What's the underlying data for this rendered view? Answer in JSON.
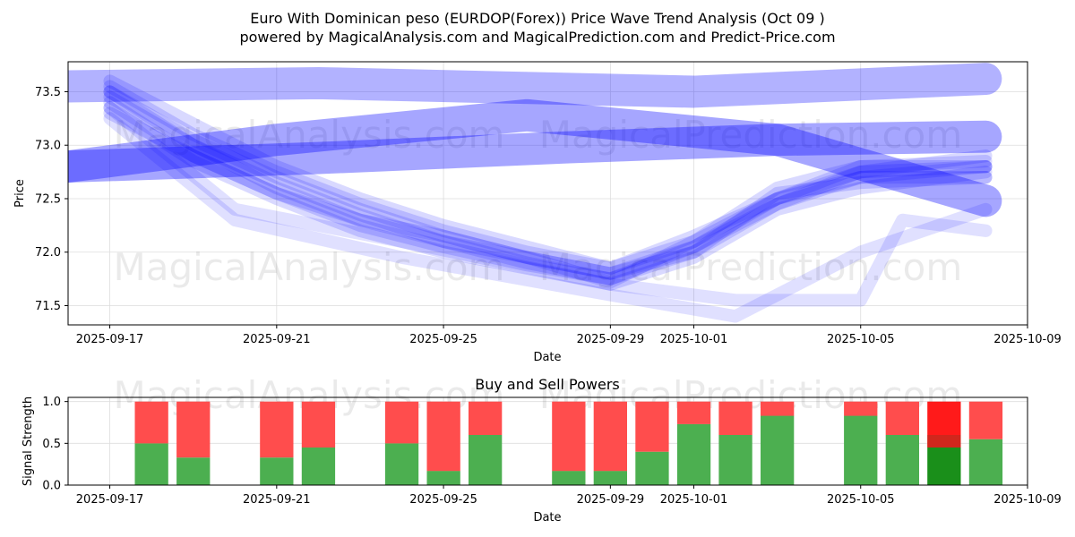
{
  "header": {
    "title": "Euro With Dominican peso (EURDOP(Forex)) Price Wave Trend Analysis (Oct 09 )",
    "subtitle": "powered by MagicalAnalysis.com and MagicalPrediction.com and Predict-Price.com"
  },
  "watermarks": [
    "MagicalAnalysis.com",
    "MagicalPrediction.com"
  ],
  "colors": {
    "wave": "#0000ff",
    "buy": "#4caf50",
    "sell": "#ff4d4d",
    "buy_highlight": "#1a8f1a",
    "sell_highlight": "#ff1a1a"
  },
  "chart_data": [
    {
      "type": "area",
      "name": "price-wave-chart",
      "xlabel": "Date",
      "ylabel": "Price",
      "x_ticks": [
        "2025-09-17",
        "2025-09-21",
        "2025-09-25",
        "2025-09-29",
        "2025-10-01",
        "2025-10-05",
        "2025-10-09"
      ],
      "y_ticks": [
        71.5,
        72.0,
        72.5,
        73.0,
        73.5
      ],
      "xlim": [
        "2025-09-16",
        "2025-10-09"
      ],
      "ylim": [
        71.32,
        73.78
      ],
      "grid": true,
      "series": [
        {
          "x": [
            "2025-09-16",
            "2025-09-22",
            "2025-10-01",
            "2025-10-08"
          ],
          "y": [
            73.55,
            73.58,
            73.5,
            73.62
          ],
          "w": 0.3,
          "alpha": 0.3
        },
        {
          "x": [
            "2025-09-16",
            "2025-09-21",
            "2025-09-27",
            "2025-10-03",
            "2025-10-08"
          ],
          "y": [
            72.8,
            73.05,
            73.28,
            73.05,
            72.48
          ],
          "w": 0.3,
          "alpha": 0.35
        },
        {
          "x": [
            "2025-09-16",
            "2025-09-22",
            "2025-09-28",
            "2025-10-03",
            "2025-10-08"
          ],
          "y": [
            72.8,
            72.88,
            72.98,
            73.05,
            73.08
          ],
          "w": 0.3,
          "alpha": 0.35
        },
        {
          "x": [
            "2025-09-17",
            "2025-09-19",
            "2025-09-21",
            "2025-09-23",
            "2025-09-25",
            "2025-09-27",
            "2025-09-29",
            "2025-10-01",
            "2025-10-03",
            "2025-10-05",
            "2025-10-08"
          ],
          "y": [
            73.45,
            73.0,
            72.6,
            72.3,
            72.1,
            71.95,
            71.72,
            72.1,
            72.5,
            72.7,
            72.8
          ],
          "w": 0.12,
          "alpha": 0.15
        },
        {
          "x": [
            "2025-09-17",
            "2025-09-19",
            "2025-09-21",
            "2025-09-23",
            "2025-09-25",
            "2025-09-27",
            "2025-09-29",
            "2025-10-01",
            "2025-10-03",
            "2025-10-05",
            "2025-10-08"
          ],
          "y": [
            73.5,
            73.05,
            72.7,
            72.4,
            72.15,
            71.95,
            71.8,
            72.05,
            72.45,
            72.75,
            72.9
          ],
          "w": 0.12,
          "alpha": 0.15
        },
        {
          "x": [
            "2025-09-17",
            "2025-09-19",
            "2025-09-21",
            "2025-09-23",
            "2025-09-25",
            "2025-09-27",
            "2025-09-29",
            "2025-10-01",
            "2025-10-03",
            "2025-10-05",
            "2025-10-08"
          ],
          "y": [
            73.4,
            72.9,
            72.55,
            72.25,
            72.05,
            71.88,
            71.75,
            72.0,
            72.55,
            72.65,
            72.7
          ],
          "w": 0.12,
          "alpha": 0.15
        },
        {
          "x": [
            "2025-09-17",
            "2025-09-19",
            "2025-09-21",
            "2025-09-23",
            "2025-09-25",
            "2025-09-27",
            "2025-09-29",
            "2025-10-01",
            "2025-10-03",
            "2025-10-05",
            "2025-10-08"
          ],
          "y": [
            73.55,
            73.1,
            72.75,
            72.45,
            72.2,
            72.0,
            71.85,
            72.15,
            72.5,
            72.8,
            72.85
          ],
          "w": 0.12,
          "alpha": 0.15
        },
        {
          "x": [
            "2025-09-17",
            "2025-09-19",
            "2025-09-21",
            "2025-09-23",
            "2025-09-25",
            "2025-09-27",
            "2025-09-29",
            "2025-10-01",
            "2025-10-03",
            "2025-10-05",
            "2025-10-08"
          ],
          "y": [
            73.35,
            72.85,
            72.5,
            72.2,
            72.0,
            71.85,
            71.7,
            71.95,
            72.4,
            72.6,
            72.75
          ],
          "w": 0.12,
          "alpha": 0.15
        },
        {
          "x": [
            "2025-09-17",
            "2025-09-19",
            "2025-09-21",
            "2025-09-23",
            "2025-09-25",
            "2025-09-27",
            "2025-09-29",
            "2025-10-01",
            "2025-10-03",
            "2025-10-05",
            "2025-10-08"
          ],
          "y": [
            73.6,
            73.2,
            72.8,
            72.5,
            72.25,
            72.05,
            71.85,
            72.1,
            72.6,
            72.8,
            72.8
          ],
          "w": 0.12,
          "alpha": 0.15
        },
        {
          "x": [
            "2025-09-17",
            "2025-09-19",
            "2025-09-21",
            "2025-09-23",
            "2025-09-25",
            "2025-09-27",
            "2025-09-29",
            "2025-10-01",
            "2025-10-03",
            "2025-10-05",
            "2025-10-08"
          ],
          "y": [
            73.3,
            72.9,
            72.55,
            72.3,
            72.15,
            71.95,
            71.8,
            72.0,
            72.45,
            72.7,
            72.7
          ],
          "w": 0.12,
          "alpha": 0.15
        },
        {
          "x": [
            "2025-09-17",
            "2025-09-19",
            "2025-09-21",
            "2025-09-23",
            "2025-09-25",
            "2025-09-27",
            "2025-09-29",
            "2025-10-01",
            "2025-10-03",
            "2025-10-05",
            "2025-10-08"
          ],
          "y": [
            73.5,
            73.0,
            72.65,
            72.35,
            72.1,
            71.9,
            71.75,
            72.05,
            72.5,
            72.75,
            72.8
          ],
          "w": 0.12,
          "alpha": 0.15
        },
        {
          "x": [
            "2025-09-17",
            "2025-09-20",
            "2025-09-24",
            "2025-09-29",
            "2025-10-02",
            "2025-10-05",
            "2025-10-06",
            "2025-10-08"
          ],
          "y": [
            73.35,
            72.4,
            72.1,
            71.7,
            71.55,
            71.55,
            72.3,
            72.2
          ],
          "w": 0.12,
          "alpha": 0.12
        },
        {
          "x": [
            "2025-09-17",
            "2025-09-20",
            "2025-09-24",
            "2025-09-29",
            "2025-10-02",
            "2025-10-05",
            "2025-10-08"
          ],
          "y": [
            73.25,
            72.3,
            71.95,
            71.6,
            71.4,
            72.0,
            72.4
          ],
          "w": 0.12,
          "alpha": 0.12
        }
      ]
    },
    {
      "type": "bar",
      "name": "buy-sell-chart",
      "title": "Buy and Sell Powers",
      "xlabel": "Date",
      "ylabel": "Signal Strength",
      "x_ticks": [
        "2025-09-17",
        "2025-09-21",
        "2025-09-25",
        "2025-09-29",
        "2025-10-01",
        "2025-10-05",
        "2025-10-09"
      ],
      "y_ticks": [
        0.0,
        0.5,
        1.0
      ],
      "xlim": [
        "2025-09-16",
        "2025-10-09"
      ],
      "ylim": [
        0,
        1.05
      ],
      "grid": true,
      "series": [
        {
          "name": "buy",
          "x": [
            "2025-09-18",
            "2025-09-19",
            "2025-09-21",
            "2025-09-22",
            "2025-09-24",
            "2025-09-25",
            "2025-09-26",
            "2025-09-28",
            "2025-09-29",
            "2025-09-30",
            "2025-10-01",
            "2025-10-02",
            "2025-10-03",
            "2025-10-05",
            "2025-10-06",
            "2025-10-07",
            "2025-10-08"
          ],
          "values": [
            0.5,
            0.33,
            0.33,
            0.45,
            0.5,
            0.17,
            0.6,
            0.17,
            0.17,
            0.4,
            0.73,
            0.6,
            0.83,
            0.83,
            0.6,
            0.45,
            0.55
          ]
        },
        {
          "name": "sell",
          "x": [
            "2025-09-18",
            "2025-09-19",
            "2025-09-21",
            "2025-09-22",
            "2025-09-24",
            "2025-09-25",
            "2025-09-26",
            "2025-09-28",
            "2025-09-29",
            "2025-09-30",
            "2025-10-01",
            "2025-10-02",
            "2025-10-03",
            "2025-10-05",
            "2025-10-06",
            "2025-10-07",
            "2025-10-08"
          ],
          "values": [
            0.5,
            0.67,
            0.67,
            0.55,
            0.5,
            0.83,
            0.4,
            0.83,
            0.83,
            0.6,
            0.27,
            0.4,
            0.17,
            0.17,
            0.4,
            0.55,
            0.45
          ]
        }
      ],
      "highlight_x": "2025-10-07"
    }
  ]
}
